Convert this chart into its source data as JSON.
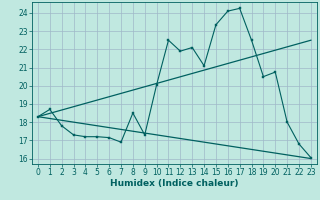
{
  "xlabel": "Humidex (Indice chaleur)",
  "bg_color": "#c0e8e0",
  "grid_color": "#a0b8c8",
  "line_color": "#006060",
  "xlim": [
    -0.5,
    23.5
  ],
  "ylim": [
    15.7,
    24.6
  ],
  "yticks": [
    16,
    17,
    18,
    19,
    20,
    21,
    22,
    23,
    24
  ],
  "xticks": [
    0,
    1,
    2,
    3,
    4,
    5,
    6,
    7,
    8,
    9,
    10,
    11,
    12,
    13,
    14,
    15,
    16,
    17,
    18,
    19,
    20,
    21,
    22,
    23
  ],
  "line1_x": [
    0,
    1,
    2,
    3,
    4,
    5,
    6,
    7,
    8,
    9,
    10,
    11,
    12,
    13,
    14,
    15,
    16,
    17,
    18,
    19,
    20,
    21,
    22,
    23
  ],
  "line1_y": [
    18.3,
    18.7,
    17.8,
    17.3,
    17.2,
    17.2,
    17.15,
    16.9,
    18.5,
    17.3,
    20.05,
    22.5,
    21.9,
    22.1,
    21.1,
    23.35,
    24.1,
    24.25,
    22.5,
    20.5,
    20.75,
    18.0,
    16.8,
    16.05
  ],
  "line2_x": [
    0,
    23
  ],
  "line2_y": [
    18.3,
    22.5
  ],
  "line3_x": [
    0,
    23
  ],
  "line3_y": [
    18.3,
    16.0
  ]
}
